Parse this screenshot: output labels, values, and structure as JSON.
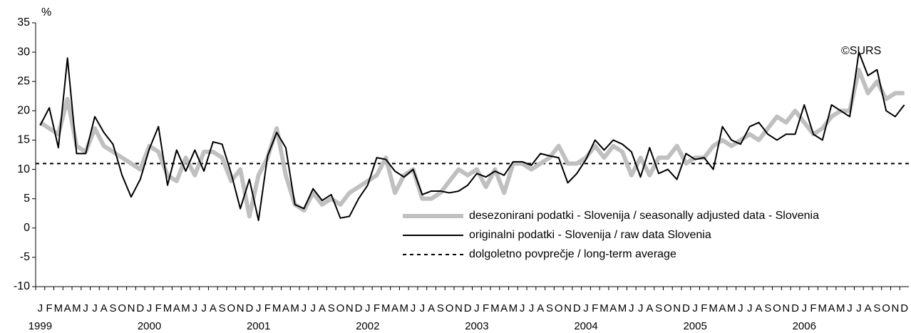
{
  "chart_data": {
    "type": "line",
    "y_unit": "%",
    "annotation": "©SURS",
    "categories": [
      "J",
      "F",
      "M",
      "A",
      "M",
      "J",
      "J",
      "A",
      "S",
      "O",
      "N",
      "D",
      "J",
      "F",
      "M",
      "A",
      "M",
      "J",
      "J",
      "A",
      "S",
      "O",
      "N",
      "D",
      "J",
      "F",
      "M",
      "A",
      "M",
      "J",
      "J",
      "A",
      "S",
      "O",
      "N",
      "D",
      "J",
      "F",
      "M",
      "A",
      "M",
      "J",
      "J",
      "A",
      "S",
      "O",
      "N",
      "D",
      "J",
      "F",
      "M",
      "A",
      "M",
      "J",
      "J",
      "A",
      "S",
      "O",
      "N",
      "D",
      "J",
      "F",
      "M",
      "A",
      "M",
      "J",
      "J",
      "A",
      "S",
      "O",
      "N",
      "D",
      "J",
      "F",
      "M",
      "A",
      "M",
      "J",
      "J",
      "A",
      "S",
      "O",
      "N",
      "D",
      "J",
      "F",
      "M",
      "A",
      "M",
      "J",
      "J",
      "A",
      "S",
      "O",
      "N",
      "D"
    ],
    "years": [
      "1999",
      "2000",
      "2001",
      "2002",
      "2003",
      "2004",
      "2005",
      "2006"
    ],
    "series": [
      {
        "name": "desezonirani podatki - Slovenija / seasonally adjusted data - Slovenia",
        "color": "#c0c0c0",
        "values": [
          18,
          17,
          16,
          22,
          14,
          13,
          17,
          14,
          13,
          12,
          11,
          10,
          14,
          13,
          9,
          8,
          12,
          9,
          13,
          13,
          12,
          8,
          10,
          2,
          9,
          12,
          17,
          9,
          4,
          3,
          6,
          4,
          5,
          4,
          6,
          7,
          8,
          9,
          12,
          6,
          9,
          10,
          5,
          5,
          6,
          8,
          10,
          9,
          10,
          7,
          10,
          6,
          11,
          11,
          10,
          11,
          12,
          14,
          11,
          11,
          12,
          14,
          12,
          14,
          13,
          9,
          12,
          9,
          12,
          12,
          14,
          11,
          12,
          12,
          14,
          15,
          14,
          15,
          16,
          15,
          17,
          19,
          18,
          20,
          18,
          16,
          17,
          19,
          20,
          20,
          27,
          23,
          25,
          22,
          23,
          23
        ]
      },
      {
        "name": "originalni podatki - Slovenija / raw data Slovenia",
        "color": "#000000",
        "values": [
          17.5,
          20.5,
          13.7,
          29,
          12.7,
          12.7,
          19,
          16.3,
          14.3,
          9,
          5.3,
          8.3,
          13.5,
          17.3,
          7.3,
          13.3,
          9.7,
          13.3,
          9.7,
          14.7,
          14.3,
          9.3,
          3.3,
          8.3,
          1.3,
          12.3,
          16.3,
          13.7,
          4,
          3.3,
          6.7,
          4.7,
          5.7,
          1.7,
          2,
          5,
          7.3,
          12,
          11.7,
          9.7,
          8.7,
          10,
          5.7,
          6.3,
          6.3,
          6,
          6.3,
          7.3,
          9.3,
          8.7,
          9.7,
          9,
          11.3,
          11.3,
          10.7,
          12.7,
          12.3,
          12,
          7.7,
          9.3,
          11.7,
          15,
          13.3,
          15,
          14.3,
          13,
          8.7,
          13.7,
          9.3,
          10,
          8.3,
          12.7,
          11.7,
          12,
          10,
          17.3,
          15,
          14.3,
          17.3,
          18,
          16,
          15,
          16,
          16,
          21,
          16,
          15,
          21,
          20,
          19,
          30,
          26,
          27,
          20,
          19,
          21
        ]
      }
    ],
    "reference_line": {
      "name": "dolgoletno povprečje / long-term average",
      "value": 11,
      "color": "#000000"
    },
    "ylim": [
      -10,
      35
    ],
    "yticks": [
      -10,
      -5,
      0,
      5,
      10,
      15,
      20,
      25,
      30,
      35
    ]
  }
}
